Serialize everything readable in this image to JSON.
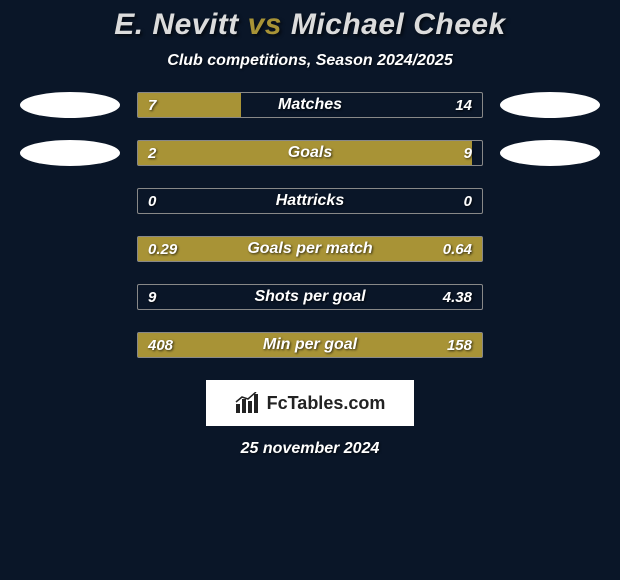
{
  "title": {
    "player1": "E. Nevitt",
    "vs": "vs",
    "player2": "Michael Cheek",
    "player1_color": "#dcdcdc",
    "vs_color": "#a89336",
    "player2_color": "#dcdcdc",
    "font_size": 30
  },
  "subtitle": "Club competitions, Season 2024/2025",
  "player_dot_color": "#ffffff",
  "bar_fill_color": "#a89336",
  "bar_border_color": "#888888",
  "background_color": "#0a1628",
  "rows": [
    {
      "label": "Matches",
      "left": "7",
      "right": "14",
      "left_pct": 30,
      "right_pct": 0,
      "show_dots": true
    },
    {
      "label": "Goals",
      "left": "2",
      "right": "9",
      "left_pct": 97,
      "right_pct": 0,
      "show_dots": true
    },
    {
      "label": "Hattricks",
      "left": "0",
      "right": "0",
      "left_pct": 0,
      "right_pct": 0,
      "show_dots": false
    },
    {
      "label": "Goals per match",
      "left": "0.29",
      "right": "0.64",
      "left_pct": 100,
      "right_pct": 0,
      "show_dots": false
    },
    {
      "label": "Shots per goal",
      "left": "9",
      "right": "4.38",
      "left_pct": 0,
      "right_pct": 0,
      "show_dots": false
    },
    {
      "label": "Min per goal",
      "left": "408",
      "right": "158",
      "left_pct": 68,
      "right_pct": 32,
      "show_dots": false
    }
  ],
  "footer": {
    "brand": "FcTables.com",
    "date": "25 november 2024"
  }
}
